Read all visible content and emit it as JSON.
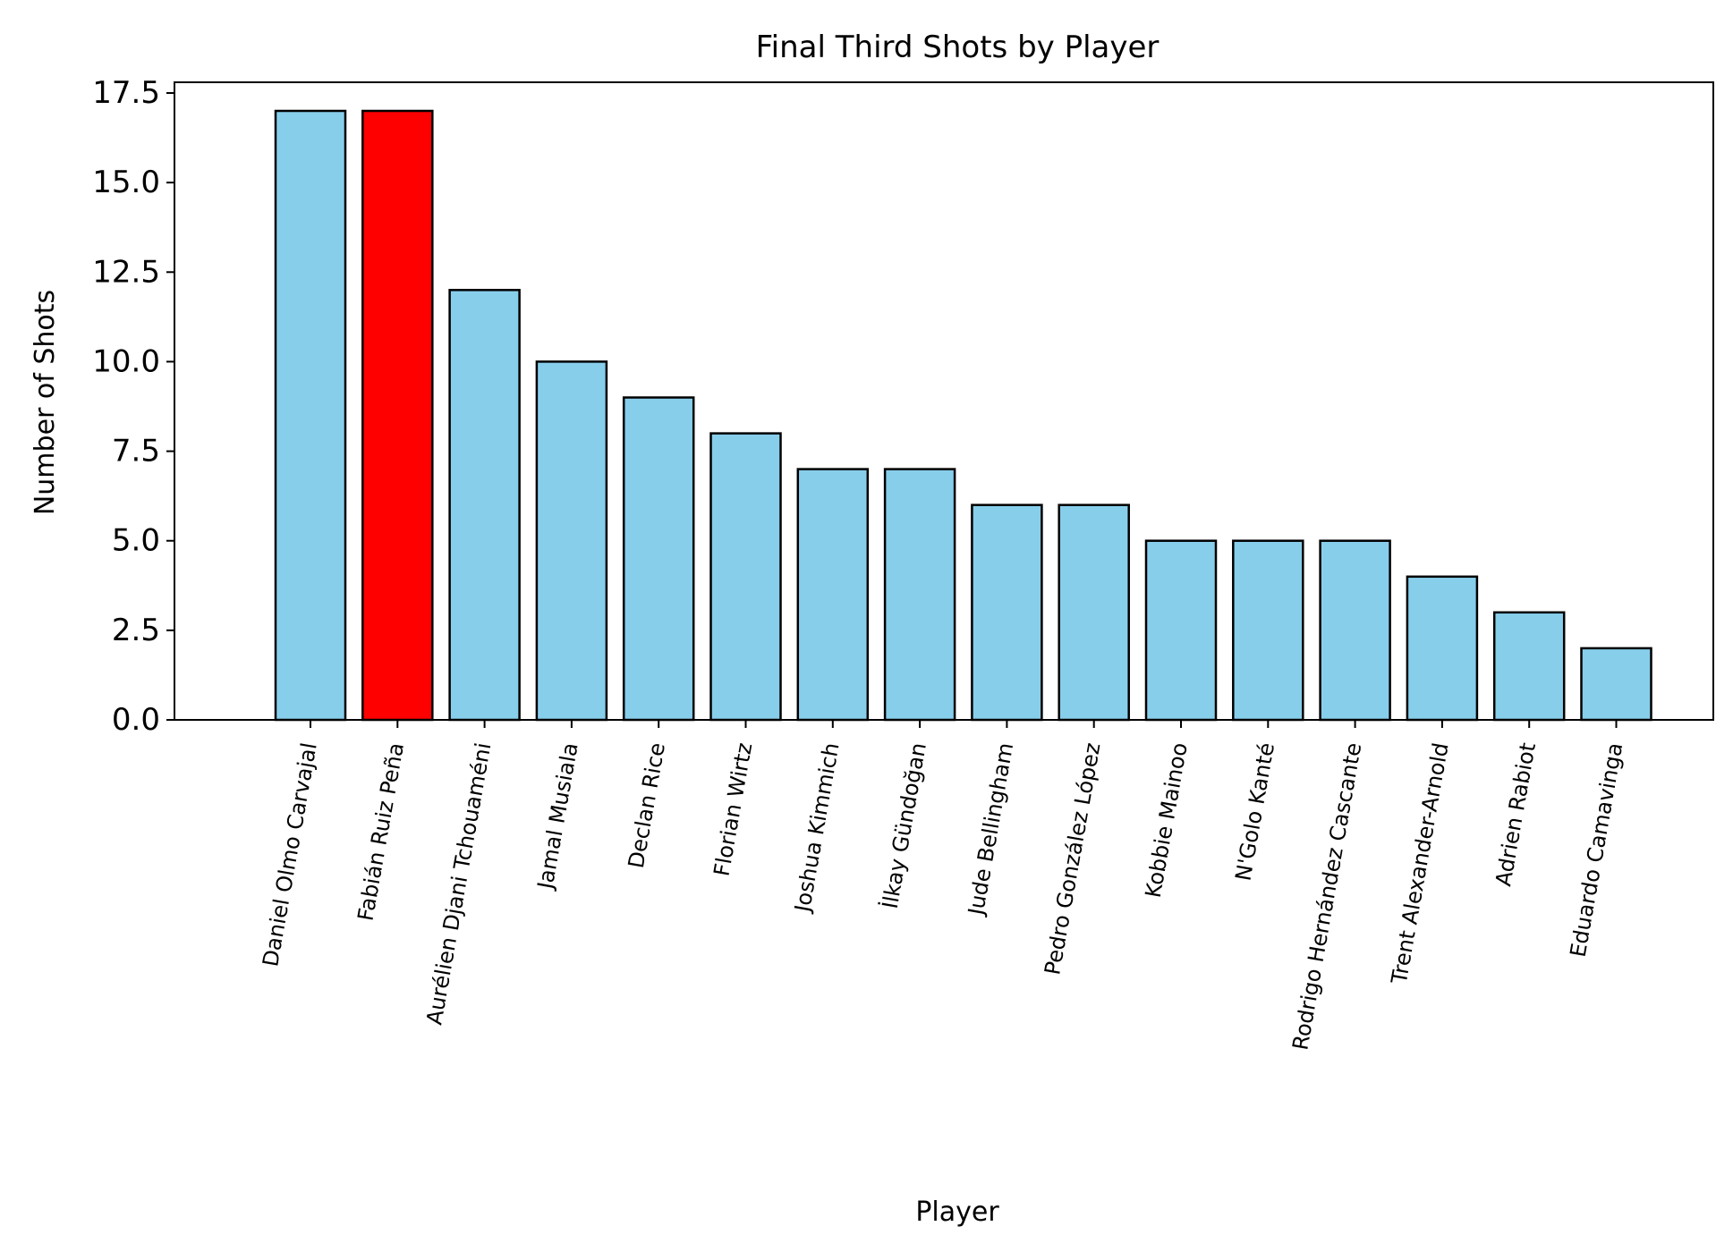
{
  "chart_data": {
    "type": "bar",
    "title": "Final Third Shots by Player",
    "xlabel": "Player",
    "ylabel": "Number of Shots",
    "ylim": [
      0,
      17.8
    ],
    "yticks": [
      "0.0",
      "2.5",
      "5.0",
      "7.5",
      "10.0",
      "12.5",
      "15.0",
      "17.5"
    ],
    "categories": [
      "Daniel Olmo Carvajal",
      "Fabián Ruiz Peña",
      "Aurélien Djani Tchouaméni",
      "Jamal Musiala",
      "Declan Rice",
      "Florian Wirtz",
      "Joshua Kimmich",
      "İlkay Gündoğan",
      "Jude Bellingham",
      "Pedro González López",
      "Kobbie Mainoo",
      "N'Golo Kanté",
      "Rodrigo Hernández Cascante",
      "Trent Alexander-Arnold",
      "Adrien Rabiot",
      "Eduardo Camavinga"
    ],
    "values": [
      17,
      17,
      12,
      10,
      9,
      8,
      7,
      7,
      6,
      6,
      5,
      5,
      5,
      4,
      3,
      2
    ],
    "highlight_index": 1,
    "grid": false,
    "colors": {
      "bar": "#87CEEB",
      "highlight": "#FF0000",
      "edge": "#000000"
    }
  }
}
